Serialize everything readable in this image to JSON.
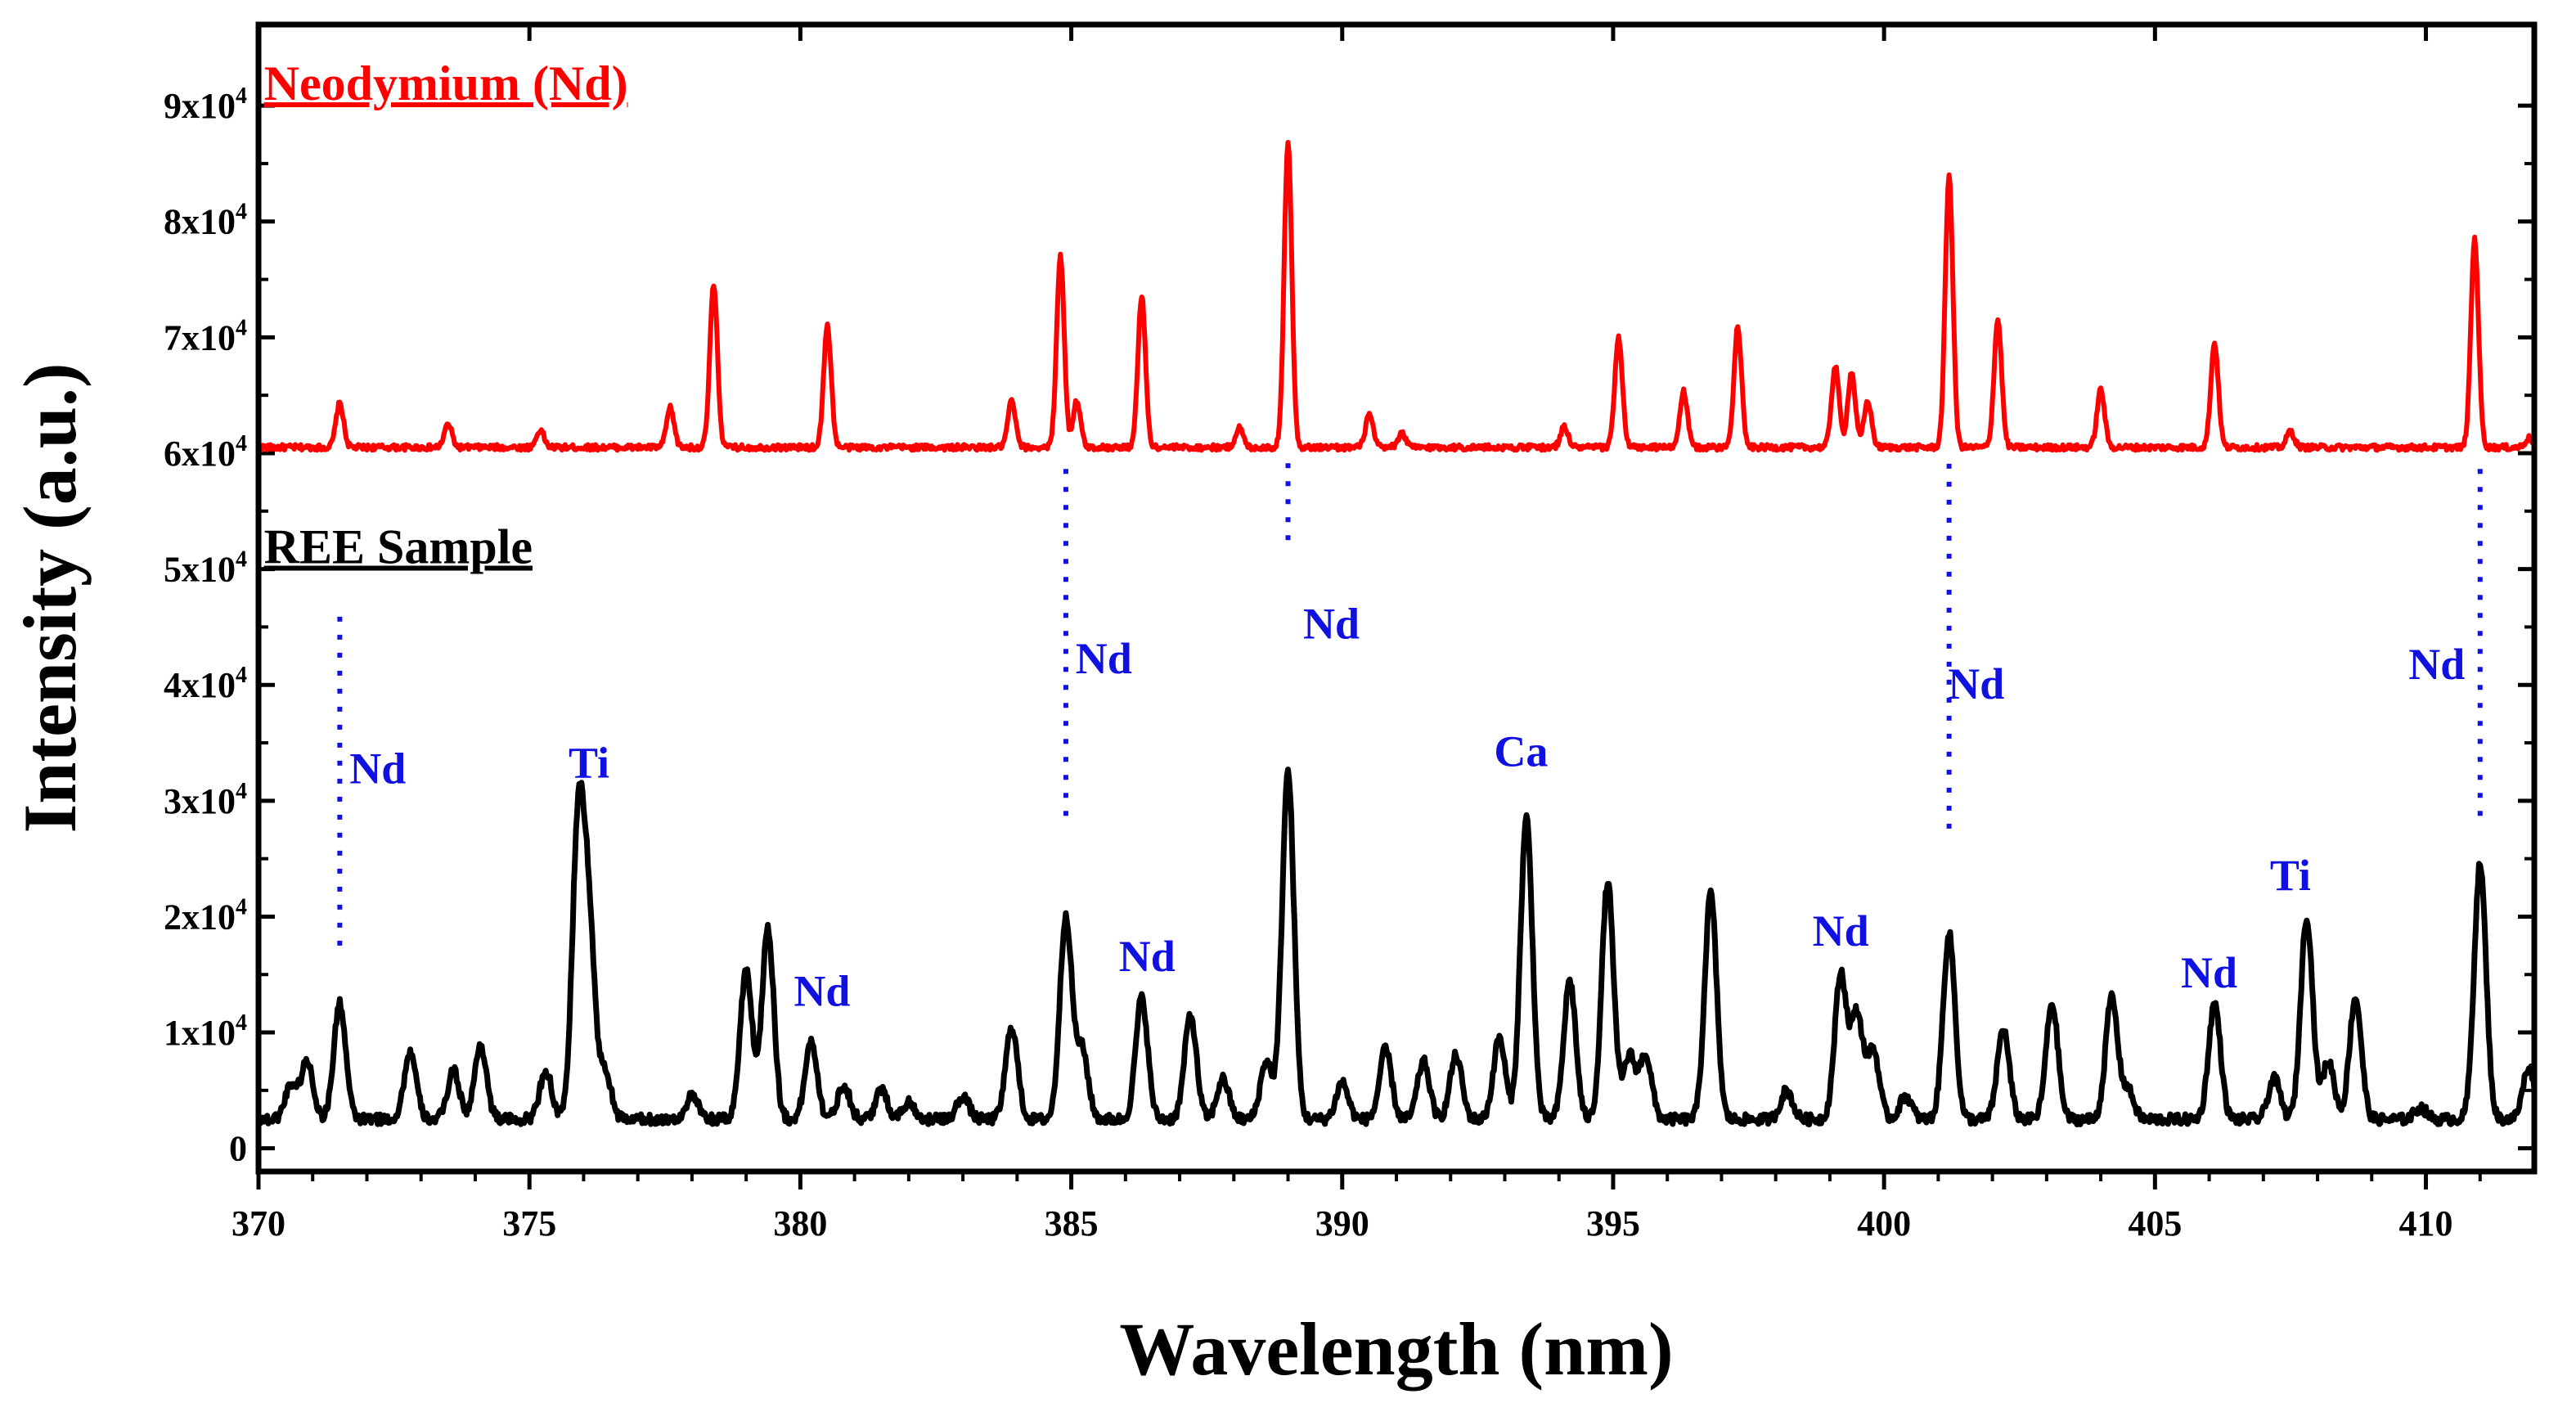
{
  "chart_data": {
    "type": "line",
    "title": "",
    "xlabel": "Wavelength (nm)",
    "ylabel": "Intensity (a.u.)",
    "xlim": [
      370,
      412
    ],
    "ylim": [
      -2000,
      97000
    ],
    "x_ticks": [
      {
        "value": 370,
        "label": "370"
      },
      {
        "value": 375,
        "label": "375"
      },
      {
        "value": 380,
        "label": "380"
      },
      {
        "value": 385,
        "label": "385"
      },
      {
        "value": 390,
        "label": "390"
      },
      {
        "value": 395,
        "label": "395"
      },
      {
        "value": 400,
        "label": "400"
      },
      {
        "value": 405,
        "label": "405"
      },
      {
        "value": 410,
        "label": "410"
      }
    ],
    "y_ticks": [
      {
        "value": 0,
        "mant": "0",
        "exp": ""
      },
      {
        "value": 10000,
        "mant": "1x10",
        "exp": "4"
      },
      {
        "value": 20000,
        "mant": "2x10",
        "exp": "4"
      },
      {
        "value": 30000,
        "mant": "3x10",
        "exp": "4"
      },
      {
        "value": 40000,
        "mant": "4x10",
        "exp": "4"
      },
      {
        "value": 50000,
        "mant": "5x10",
        "exp": "4"
      },
      {
        "value": 60000,
        "mant": "6x10",
        "exp": "4"
      },
      {
        "value": 70000,
        "mant": "7x10",
        "exp": "4"
      },
      {
        "value": 80000,
        "mant": "8x10",
        "exp": "4"
      },
      {
        "value": 90000,
        "mant": "9x10",
        "exp": "4"
      }
    ],
    "series": [
      {
        "name": "Neodymium (Nd)",
        "color": "#ff0000",
        "baseline": 60500,
        "width_nm": 0.07,
        "peaks": [
          [
            371.5,
            3800
          ],
          [
            373.5,
            2000
          ],
          [
            375.2,
            1500
          ],
          [
            377.6,
            3400
          ],
          [
            378.4,
            14000
          ],
          [
            380.5,
            10500
          ],
          [
            383.9,
            4000
          ],
          [
            384.8,
            16500
          ],
          [
            385.1,
            4000
          ],
          [
            386.3,
            13000
          ],
          [
            388.1,
            1700
          ],
          [
            389.0,
            26500
          ],
          [
            390.5,
            2800
          ],
          [
            391.1,
            1200
          ],
          [
            394.1,
            1800
          ],
          [
            395.1,
            9500
          ],
          [
            396.3,
            4800
          ],
          [
            397.3,
            10500
          ],
          [
            399.1,
            7000
          ],
          [
            399.4,
            6500
          ],
          [
            399.7,
            4000
          ],
          [
            401.2,
            23500
          ],
          [
            402.1,
            11000
          ],
          [
            404.0,
            5000
          ],
          [
            406.1,
            9000
          ],
          [
            407.5,
            1400
          ],
          [
            410.9,
            18000
          ],
          [
            411.9,
            800
          ]
        ]
      },
      {
        "name": "REE Sample",
        "color": "#000000",
        "baseline": 2500,
        "width_nm": 0.11,
        "peaks": [
          [
            370.6,
            3000
          ],
          [
            370.9,
            5000
          ],
          [
            371.5,
            10000
          ],
          [
            372.8,
            5800
          ],
          [
            373.6,
            4200
          ],
          [
            374.1,
            6400
          ],
          [
            375.3,
            4200
          ],
          [
            375.9,
            25000
          ],
          [
            376.1,
            16000
          ],
          [
            376.4,
            4000
          ],
          [
            378.0,
            2000
          ],
          [
            379.0,
            13000
          ],
          [
            379.4,
            16500
          ],
          [
            380.2,
            6800
          ],
          [
            380.8,
            3000
          ],
          [
            381.5,
            2500
          ],
          [
            382.0,
            1500
          ],
          [
            383.0,
            2000
          ],
          [
            383.9,
            8000
          ],
          [
            384.9,
            17500
          ],
          [
            385.2,
            6000
          ],
          [
            386.3,
            10500
          ],
          [
            387.2,
            9000
          ],
          [
            387.8,
            3500
          ],
          [
            388.6,
            5000
          ],
          [
            389.0,
            30000
          ],
          [
            390.0,
            3200
          ],
          [
            390.8,
            6000
          ],
          [
            391.5,
            5000
          ],
          [
            392.1,
            5500
          ],
          [
            392.9,
            7000
          ],
          [
            393.4,
            26000
          ],
          [
            394.2,
            12000
          ],
          [
            394.9,
            20500
          ],
          [
            395.3,
            5500
          ],
          [
            395.6,
            5500
          ],
          [
            396.8,
            19500
          ],
          [
            398.2,
            2500
          ],
          [
            399.2,
            12500
          ],
          [
            399.5,
            9000
          ],
          [
            399.8,
            6000
          ],
          [
            400.4,
            2000
          ],
          [
            401.2,
            16000
          ],
          [
            402.2,
            7800
          ],
          [
            403.1,
            10000
          ],
          [
            404.2,
            10500
          ],
          [
            404.5,
            2500
          ],
          [
            406.1,
            10000
          ],
          [
            407.2,
            3500
          ],
          [
            407.8,
            17500
          ],
          [
            408.2,
            5000
          ],
          [
            408.7,
            10500
          ],
          [
            409.9,
            1000
          ],
          [
            411.0,
            22000
          ],
          [
            411.9,
            4500
          ]
        ]
      }
    ],
    "labels": [
      {
        "id": "nd-ref",
        "text": "Neodymium (Nd)",
        "color": "#ff0000",
        "x": 370.1,
        "y": 90500
      },
      {
        "id": "ree",
        "text": "REE Sample",
        "color": "#000000",
        "x": 370.1,
        "y": 50500
      }
    ],
    "annotations": [
      {
        "text": "Nd",
        "x": 372.2,
        "y": 31500
      },
      {
        "text": "Ti",
        "x": 376.1,
        "y": 32000
      },
      {
        "text": "Nd",
        "x": 380.4,
        "y": 12300
      },
      {
        "text": "Nd",
        "x": 385.6,
        "y": 41000
      },
      {
        "text": "Nd",
        "x": 386.4,
        "y": 15300
      },
      {
        "text": "Nd",
        "x": 389.8,
        "y": 44000
      },
      {
        "text": "Ca",
        "x": 393.3,
        "y": 33000
      },
      {
        "text": "Nd",
        "x": 399.2,
        "y": 17500
      },
      {
        "text": "Nd",
        "x": 401.7,
        "y": 38800
      },
      {
        "text": "Nd",
        "x": 406.0,
        "y": 13900
      },
      {
        "text": "Ti",
        "x": 407.5,
        "y": 22300
      },
      {
        "text": "Nd",
        "x": 410.2,
        "y": 40500
      }
    ],
    "dotted_lines": [
      {
        "x": 371.5,
        "y_from": 17500,
        "y_to": 47000
      },
      {
        "x": 384.9,
        "y_from": 28700,
        "y_to": 59500
      },
      {
        "x": 389.0,
        "y_from": 52500,
        "y_to": 59500
      },
      {
        "x": 401.2,
        "y_from": 27600,
        "y_to": 59500
      },
      {
        "x": 411.0,
        "y_from": 28700,
        "y_to": 59500
      }
    ]
  }
}
